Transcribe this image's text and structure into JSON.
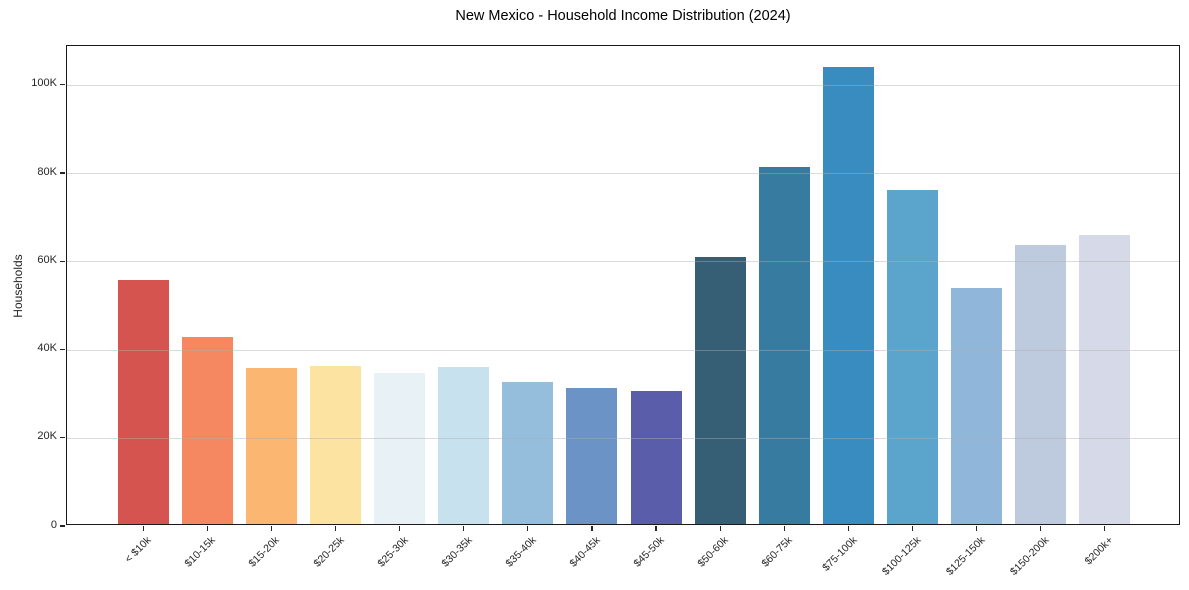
{
  "chart_data": {
    "type": "bar",
    "title": "New Mexico - Household Income Distribution (2024)",
    "xlabel": "",
    "ylabel": "Households",
    "categories": [
      "< $10k",
      "$10-15k",
      "$15-20k",
      "$20-25k",
      "$25-30k",
      "$30-35k",
      "$35-40k",
      "$40-45k",
      "$45-50k",
      "$50-60k",
      "$60-75k",
      "$75-100k",
      "$100-125k",
      "$125-150k",
      "$150-200k",
      "$200k+"
    ],
    "values": [
      55400,
      42300,
      35400,
      35800,
      34300,
      35500,
      32200,
      30800,
      30200,
      60600,
      81000,
      103600,
      75700,
      53600,
      63300,
      65400
    ],
    "bar_colors": [
      "#d6544f",
      "#f58761",
      "#fbb671",
      "#fce3a2",
      "#e7f1f6",
      "#c7e1ee",
      "#94bedb",
      "#6b93c6",
      "#5a5eaa",
      "#365f75",
      "#377ba1",
      "#398cbf",
      "#5ba4cc",
      "#90b6da",
      "#becbdf",
      "#d6d9e7"
    ],
    "ylim": [
      0,
      108800
    ],
    "yticks": [
      0,
      20000,
      40000,
      60000,
      80000,
      100000
    ],
    "ytick_labels": [
      "0",
      "20K",
      "40K",
      "60K",
      "80K",
      "100K"
    ],
    "grid": "horizontal",
    "legend": "none"
  },
  "colors": {
    "background": "#ffffff",
    "axis": "#1a1a1a",
    "tick_text": "#262626",
    "grid": "#b0b0b0"
  }
}
